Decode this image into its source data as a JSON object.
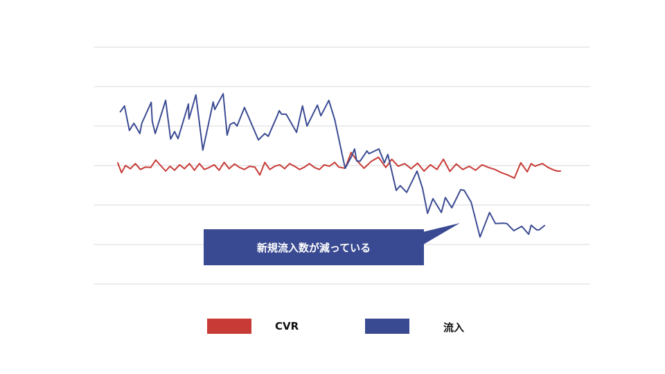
{
  "chart_data": {
    "type": "line",
    "title": "",
    "xlabel": "",
    "ylabel": "",
    "xlim": [
      0,
      100
    ],
    "ylim": [
      0,
      6
    ],
    "grid": true,
    "gridlines_y": [
      0,
      1,
      2,
      3,
      4,
      5,
      6
    ],
    "legend_position": "bottom",
    "annotation": "新規流入数が減っている",
    "series": [
      {
        "name": "CVR",
        "color": "#c73a36",
        "x": [
          4.7,
          5.5,
          6.3,
          7.3,
          8.3,
          9.3,
          10.3,
          11.4,
          12.4,
          13.4,
          14.4,
          15.3,
          16.2,
          17.2,
          18.2,
          19.2,
          20.2,
          21.2,
          22.2,
          23.2,
          24.2,
          25.2,
          26.2,
          27.2,
          28.3,
          29.3,
          30.3,
          31.3,
          32.4,
          33.4,
          34.4,
          35.4,
          36.4,
          37.4,
          38.4,
          39.4,
          40.4,
          41.4,
          42.4,
          43.4,
          44.4,
          45.4,
          46.4,
          47.4,
          48.5,
          49.3,
          50.6,
          51.8,
          53.0,
          54.4,
          55.8,
          57.3,
          58.8,
          60.0,
          61.3,
          62.6,
          63.9,
          65.2,
          66.5,
          67.8,
          69.1,
          70.4,
          71.7,
          73.0,
          74.3,
          75.6,
          76.9,
          78.2,
          79.5,
          80.8,
          82.1,
          83.4,
          84.7,
          86.0,
          87.3,
          88.1,
          88.9,
          89.6,
          90.4,
          91.4,
          92.4,
          93.3,
          94.1
        ],
        "values": [
          3.08,
          2.82,
          3.0,
          2.92,
          3.05,
          2.9,
          2.96,
          2.95,
          3.14,
          3.0,
          2.86,
          2.98,
          2.88,
          3.02,
          2.92,
          3.05,
          2.88,
          3.05,
          2.9,
          2.95,
          3.02,
          2.88,
          3.08,
          2.92,
          3.04,
          2.95,
          2.9,
          2.98,
          2.96,
          2.76,
          3.08,
          2.9,
          2.98,
          3.02,
          2.92,
          3.05,
          2.98,
          2.9,
          2.96,
          3.05,
          2.95,
          2.9,
          3.02,
          2.98,
          3.08,
          2.96,
          2.93,
          3.33,
          3.12,
          2.93,
          3.1,
          3.21,
          2.95,
          3.16,
          2.98,
          3.05,
          2.92,
          3.06,
          2.86,
          3.02,
          2.9,
          3.16,
          2.85,
          3.04,
          2.9,
          2.98,
          2.88,
          3.02,
          2.95,
          2.9,
          2.82,
          2.76,
          2.68,
          3.07,
          2.84,
          3.05,
          2.98,
          3.02,
          3.05,
          2.96,
          2.9,
          2.86,
          2.86
        ]
      },
      {
        "name": "流入",
        "color": "#3a4a92",
        "x": [
          5.2,
          6.1,
          7.1,
          8.0,
          9.2,
          9.6,
          11.5,
          11.7,
          12.3,
          14.4,
          15.4,
          16.2,
          16.9,
          19.0,
          19.1,
          20.5,
          21.9,
          24.0,
          24.3,
          26.0,
          26.8,
          27.4,
          28.2,
          28.8,
          30.3,
          33.1,
          34.4,
          35.1,
          36.9,
          37.3,
          37.8,
          38.7,
          40.8,
          42.0,
          42.9,
          45.0,
          45.7,
          47.3,
          48.5,
          49.9,
          50.6,
          51.8,
          52.5,
          52.9,
          53.6,
          55.0,
          55.4,
          57.4,
          58.5,
          59.2,
          60.9,
          61.7,
          63.0,
          65.1,
          66.2,
          67.2,
          68.3,
          70.0,
          70.8,
          72.1,
          73.9,
          74.6,
          76.0,
          77.8,
          79.7,
          80.9,
          82.5,
          83.2,
          84.6,
          86.2,
          87.6,
          88.1,
          89.2,
          89.7,
          90.9
        ],
        "values": [
          4.35,
          4.51,
          3.89,
          4.07,
          3.81,
          4.07,
          4.6,
          4.12,
          3.81,
          4.65,
          3.67,
          3.86,
          3.68,
          4.56,
          4.18,
          4.79,
          3.39,
          4.61,
          4.42,
          4.82,
          3.77,
          4.04,
          4.09,
          4.0,
          4.47,
          3.65,
          3.81,
          3.74,
          4.26,
          4.39,
          4.3,
          4.3,
          3.84,
          4.51,
          4.0,
          4.53,
          4.26,
          4.65,
          4.16,
          3.33,
          2.93,
          3.21,
          3.42,
          3.12,
          3.11,
          3.37,
          3.3,
          3.42,
          3.07,
          3.28,
          2.37,
          2.49,
          2.32,
          2.86,
          2.42,
          1.79,
          2.16,
          1.81,
          2.19,
          1.93,
          2.39,
          2.37,
          2.07,
          1.19,
          1.81,
          1.53,
          1.54,
          1.53,
          1.35,
          1.46,
          1.26,
          1.49,
          1.37,
          1.37,
          1.49
        ]
      }
    ]
  }
}
